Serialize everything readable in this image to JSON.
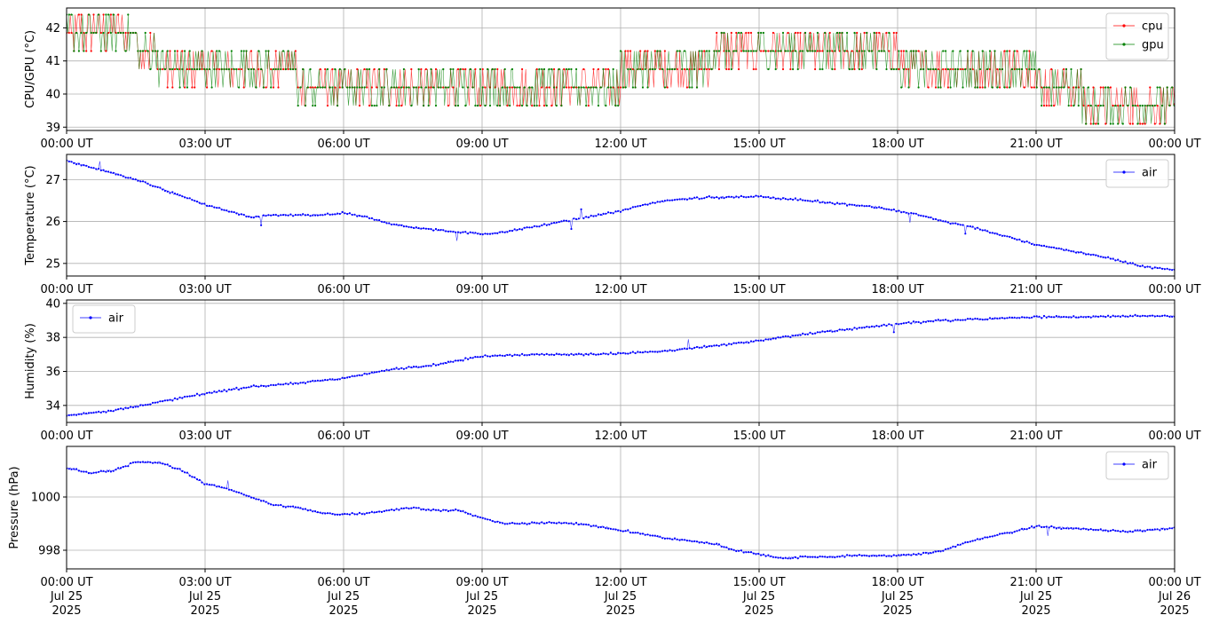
{
  "chart_data": [
    {
      "type": "line",
      "ylabel": "CPU/GPU (°C)",
      "ylim": [
        38.9,
        42.6
      ],
      "yticks": [
        39,
        40,
        41,
        42
      ],
      "xlim": [
        0,
        24
      ],
      "x_tick_hours": [
        0,
        3,
        6,
        9,
        12,
        15,
        18,
        21,
        24
      ],
      "x_tick_labels": [
        "00:00 UT",
        "03:00 UT",
        "06:00 UT",
        "09:00 UT",
        "12:00 UT",
        "15:00 UT",
        "18:00 UT",
        "21:00 UT",
        "00:00 UT"
      ],
      "grid": true,
      "legend": "top-right",
      "series": [
        {
          "name": "cpu",
          "color": "#ff0000",
          "levels": [
            41.85,
            41.85,
            41.3,
            40.75,
            40.75,
            40.2,
            40.2,
            40.2,
            40.75,
            41.3,
            41.3,
            40.75,
            40.75,
            40.75,
            40.2,
            39.65,
            39.15
          ],
          "level_hours": [
            0,
            1,
            1.5,
            2,
            4,
            5,
            7,
            10,
            12,
            14,
            16,
            18,
            19,
            20,
            21,
            22,
            24
          ]
        },
        {
          "name": "gpu",
          "color": "#008000",
          "levels": [
            41.85,
            41.85,
            41.3,
            40.75,
            40.75,
            40.2,
            40.2,
            40.2,
            40.75,
            41.3,
            41.3,
            40.75,
            40.75,
            40.75,
            40.2,
            39.65,
            39.65
          ],
          "level_hours": [
            0,
            1,
            1.5,
            2,
            4,
            5,
            7,
            10,
            12,
            14,
            16,
            18,
            19,
            20,
            21,
            22,
            24
          ]
        }
      ]
    },
    {
      "type": "line",
      "ylabel": "Temperature (°C)",
      "ylim": [
        24.7,
        27.6
      ],
      "yticks": [
        25,
        26,
        27
      ],
      "xlim": [
        0,
        24
      ],
      "x_tick_hours": [
        0,
        3,
        6,
        9,
        12,
        15,
        18,
        21,
        24
      ],
      "x_tick_labels": [
        "00:00 UT",
        "03:00 UT",
        "06:00 UT",
        "09:00 UT",
        "12:00 UT",
        "15:00 UT",
        "18:00 UT",
        "21:00 UT",
        "00:00 UT"
      ],
      "grid": true,
      "legend": "top-right",
      "series": [
        {
          "name": "air",
          "color": "#0000ff",
          "x": [
            0,
            0.5,
            1,
            1.5,
            2,
            2.5,
            3,
            3.5,
            4,
            4.5,
            5,
            5.5,
            6,
            6.5,
            7,
            7.5,
            8,
            8.5,
            9,
            9.5,
            10,
            10.5,
            11,
            11.5,
            12,
            12.5,
            13,
            13.5,
            14,
            14.5,
            15,
            15.5,
            16,
            16.5,
            17,
            17.5,
            18,
            18.5,
            19,
            19.5,
            20,
            20.5,
            21,
            21.5,
            22,
            22.5,
            23,
            23.5,
            24
          ],
          "y": [
            27.45,
            27.3,
            27.15,
            27.0,
            26.8,
            26.6,
            26.4,
            26.25,
            26.1,
            26.15,
            26.15,
            26.15,
            26.2,
            26.1,
            25.95,
            25.85,
            25.8,
            25.75,
            25.7,
            25.75,
            25.85,
            25.95,
            26.05,
            26.15,
            26.25,
            26.4,
            26.5,
            26.55,
            26.58,
            26.58,
            26.6,
            26.55,
            26.5,
            26.45,
            26.4,
            26.35,
            26.25,
            26.15,
            26.0,
            25.9,
            25.75,
            25.6,
            25.45,
            25.35,
            25.25,
            25.15,
            25.0,
            24.9,
            24.85
          ]
        }
      ]
    },
    {
      "type": "line",
      "ylabel": "Humidity (%)",
      "ylim": [
        33.0,
        40.2
      ],
      "yticks": [
        34,
        36,
        38,
        40
      ],
      "xlim": [
        0,
        24
      ],
      "x_tick_hours": [
        0,
        3,
        6,
        9,
        12,
        15,
        18,
        21,
        24
      ],
      "x_tick_labels": [
        "00:00 UT",
        "03:00 UT",
        "06:00 UT",
        "09:00 UT",
        "12:00 UT",
        "15:00 UT",
        "18:00 UT",
        "21:00 UT",
        "00:00 UT"
      ],
      "grid": true,
      "legend": "top-left",
      "series": [
        {
          "name": "air",
          "color": "#0000ff",
          "x": [
            0,
            1,
            2,
            3,
            4,
            5,
            6,
            7,
            8,
            9,
            10,
            11,
            12,
            13,
            14,
            15,
            16,
            17,
            18,
            19,
            20,
            21,
            22,
            23,
            24
          ],
          "y": [
            33.4,
            33.7,
            34.2,
            34.7,
            35.1,
            35.3,
            35.6,
            36.1,
            36.4,
            36.9,
            37.0,
            37.0,
            37.05,
            37.2,
            37.5,
            37.8,
            38.2,
            38.5,
            38.8,
            39.0,
            39.1,
            39.2,
            39.2,
            39.25,
            39.25
          ]
        }
      ]
    },
    {
      "type": "line",
      "ylabel": "Pressure (hPa)",
      "ylim": [
        997.3,
        1001.9
      ],
      "yticks": [
        998,
        1000
      ],
      "xlim": [
        0,
        24
      ],
      "x_tick_hours": [
        0,
        3,
        6,
        9,
        12,
        15,
        18,
        21,
        24
      ],
      "x_tick_labels": [
        "00:00 UT",
        "03:00 UT",
        "06:00 UT",
        "09:00 UT",
        "12:00 UT",
        "15:00 UT",
        "18:00 UT",
        "21:00 UT",
        "00:00 UT"
      ],
      "x_tick_sublabels": [
        "Jul 25\n2025",
        "Jul 25\n2025",
        "Jul 25\n2025",
        "Jul 25\n2025",
        "Jul 25\n2025",
        "Jul 25\n2025",
        "Jul 25\n2025",
        "Jul 25\n2025",
        "Jul 26\n2025"
      ],
      "grid": true,
      "legend": "top-right",
      "series": [
        {
          "name": "air",
          "color": "#0000ff",
          "x": [
            0,
            0.5,
            1,
            1.5,
            2,
            2.5,
            3,
            3.5,
            4,
            4.5,
            5,
            5.5,
            6,
            6.5,
            7,
            7.5,
            8,
            8.5,
            9,
            9.5,
            10,
            10.5,
            11,
            11.5,
            12,
            12.5,
            13,
            13.5,
            14,
            14.5,
            15,
            15.5,
            16,
            16.5,
            17,
            17.5,
            18,
            18.5,
            19,
            19.5,
            20,
            20.5,
            21,
            21.5,
            22,
            22.5,
            23,
            23.5,
            24
          ],
          "y": [
            1001.1,
            1000.9,
            1001.0,
            1001.3,
            1001.3,
            1001.0,
            1000.5,
            1000.3,
            1000.0,
            999.7,
            999.6,
            999.4,
            999.35,
            999.4,
            999.5,
            999.6,
            999.5,
            999.5,
            999.2,
            999.0,
            999.0,
            999.05,
            999.0,
            998.9,
            998.75,
            998.6,
            998.45,
            998.35,
            998.25,
            998.0,
            997.85,
            997.7,
            997.75,
            997.75,
            997.8,
            997.8,
            997.8,
            997.85,
            998.0,
            998.3,
            998.5,
            998.7,
            998.9,
            998.85,
            998.8,
            998.75,
            998.7,
            998.75,
            998.85
          ]
        }
      ]
    }
  ]
}
